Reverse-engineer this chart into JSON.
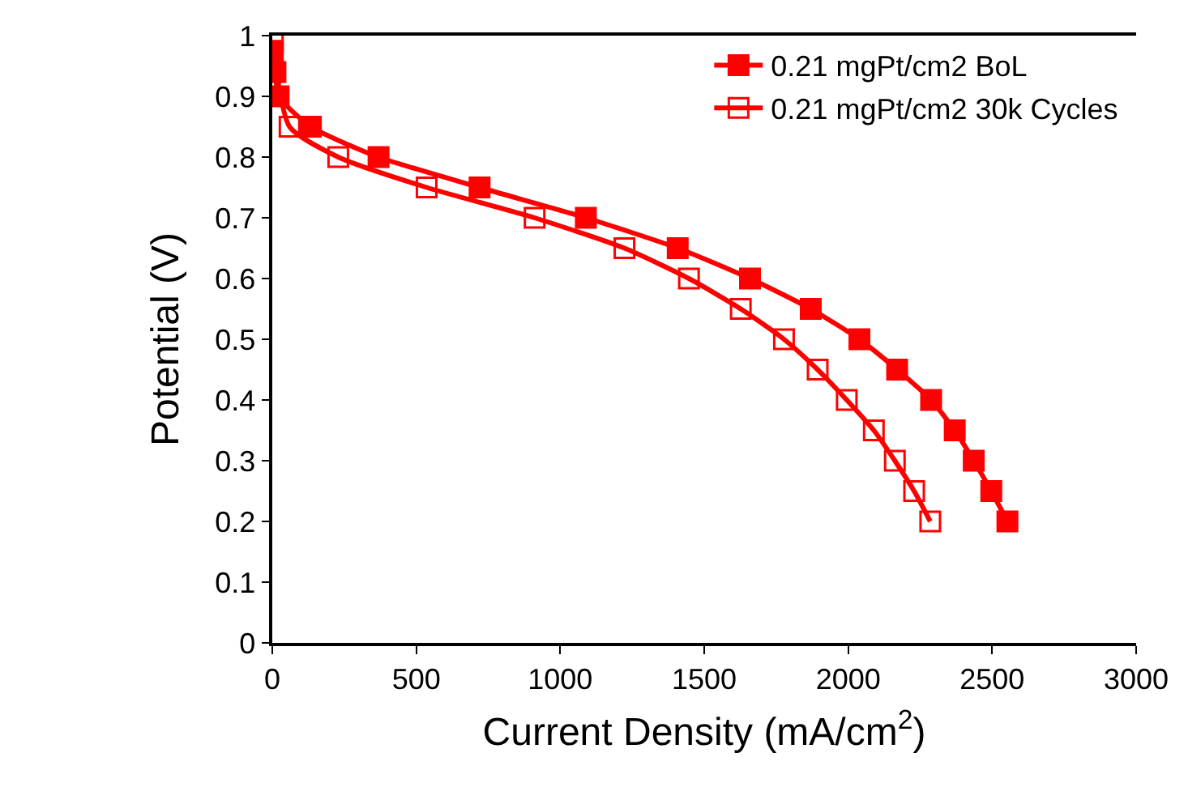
{
  "chart_data": {
    "type": "line",
    "xlabel": "Current Density (mA/cm$^{2}$)",
    "ylabel": "Potential (V)",
    "xlim": [
      0,
      3000
    ],
    "xticks": [
      0,
      500,
      1000,
      1500,
      2000,
      2500,
      3000
    ],
    "ylim": [
      0,
      1
    ],
    "yticks": [
      0,
      0.1,
      0.2,
      0.3,
      0.4,
      0.5,
      0.6,
      0.7,
      0.8,
      0.9,
      1
    ],
    "legend": "top right",
    "line_style": "solid",
    "series": [
      {
        "name": "0.21 mgPt/cm2 BoL",
        "color": "#ff0000",
        "marker": "square",
        "x": [
          2,
          11,
          22,
          134,
          369,
          720,
          1089,
          1408,
          1659,
          1870,
          2039,
          2170,
          2288,
          2370,
          2436,
          2497,
          2553
        ],
        "values": [
          0.975,
          0.94,
          0.9,
          0.85,
          0.8,
          0.75,
          0.7,
          0.65,
          0.6,
          0.55,
          0.5,
          0.45,
          0.4,
          0.35,
          0.3,
          0.25,
          0.2
        ]
      },
      {
        "name": "0.21 mgPt/cm2 30k Cycles",
        "color": "#ff0000",
        "marker": "square-open",
        "x": [
          2,
          60,
          229,
          536,
          911,
          1223,
          1447,
          1627,
          1777,
          1894,
          1995,
          2089,
          2162,
          2229,
          2285
        ],
        "values": [
          0.99,
          0.85,
          0.8,
          0.75,
          0.7,
          0.65,
          0.6,
          0.55,
          0.5,
          0.45,
          0.4,
          0.35,
          0.3,
          0.25,
          0.2
        ]
      }
    ]
  }
}
